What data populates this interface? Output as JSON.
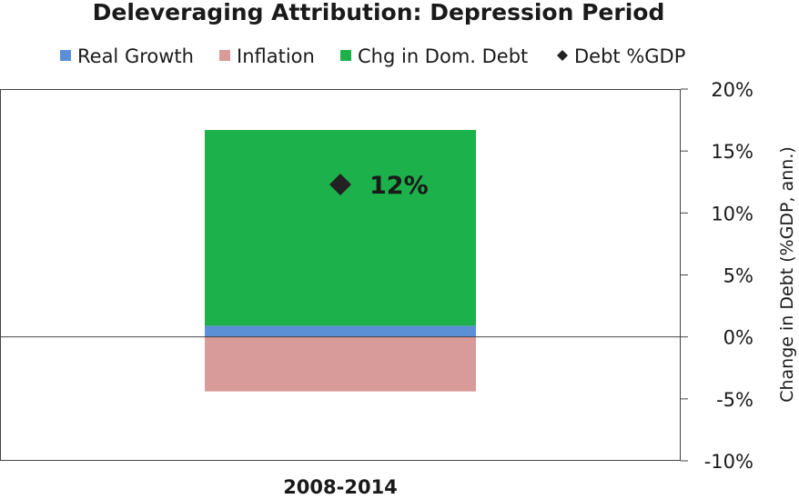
{
  "chart_data": {
    "type": "bar",
    "stacked": true,
    "title": "Deleveraging Attribution: Depression Period",
    "categories": [
      "2008-2014"
    ],
    "series": [
      {
        "name": "Real Growth",
        "values": [
          0.9
        ],
        "color": "#5b8fd6"
      },
      {
        "name": "Inflation",
        "values": [
          -4.4
        ],
        "color": "#d99a9a"
      },
      {
        "name": "Chg in Dom. Debt",
        "values": [
          15.8
        ],
        "color": "#1db14b"
      }
    ],
    "markers": [
      {
        "name": "Debt %GDP",
        "values": [
          12.3
        ],
        "label": "12%",
        "color": "#222222"
      }
    ],
    "legend": [
      {
        "label": "Real Growth",
        "symbol": "square",
        "color": "#5b8fd6"
      },
      {
        "label": "Inflation",
        "symbol": "square",
        "color": "#d99a9a"
      },
      {
        "label": "Chg in Dom. Debt",
        "symbol": "square",
        "color": "#1db14b"
      },
      {
        "label": "Debt %GDP",
        "symbol": "diamond",
        "color": "#222222"
      }
    ],
    "legend_position": "top",
    "ylabel": "Change in Debt (%GDP, ann.)",
    "ylim": [
      -10,
      20
    ],
    "yticks": [
      20,
      15,
      10,
      5,
      0,
      -5,
      -10
    ],
    "ytick_labels": [
      "20%",
      "15%",
      "10%",
      "5%",
      "0%",
      "-5%",
      "-10%"
    ],
    "yaxis_side": "right",
    "grid": false
  }
}
